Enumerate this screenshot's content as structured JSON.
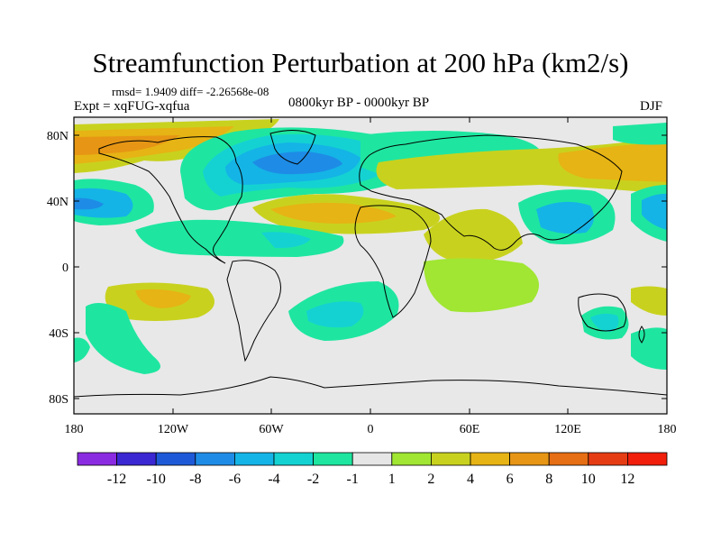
{
  "title": "Streamfunction Perturbation at 200 hPa (km2/s)",
  "stats": "rmsd= 1.9409 diff= -2.26568e-08",
  "experiment": "Expt = xqFUG-xqfua",
  "period": "0800kyr BP - 0000kyr BP",
  "season": "DJF",
  "lat_labels": [
    "80N",
    "40N",
    "0",
    "40S",
    "80S"
  ],
  "lon_labels": [
    "180",
    "120W",
    "60W",
    "0",
    "60E",
    "120E",
    "180"
  ],
  "colorbar": {
    "labels": [
      "-12",
      "-10",
      "-8",
      "-6",
      "-4",
      "-2",
      "-1",
      "1",
      "2",
      "4",
      "6",
      "8",
      "10",
      "12"
    ],
    "colors": [
      "#8a2be2",
      "#3c28d2",
      "#1e5ad8",
      "#1e8ce6",
      "#14b4e6",
      "#14d2d2",
      "#1ee6a0",
      "#e6e6e6",
      "#a0e632",
      "#c8d21e",
      "#e6b414",
      "#e69614",
      "#e66e14",
      "#e63c14",
      "#f01e0a"
    ]
  }
}
